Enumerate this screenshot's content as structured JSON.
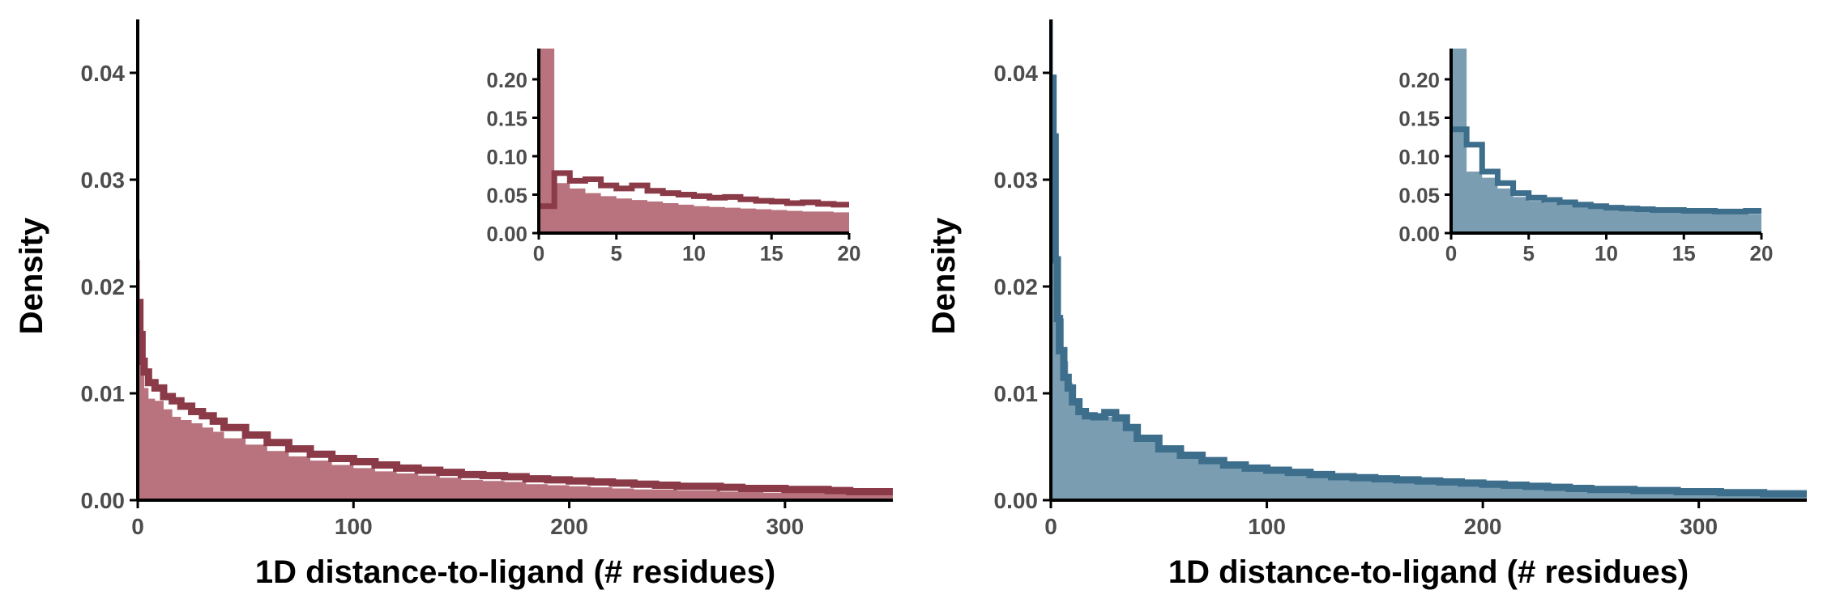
{
  "figure": {
    "panels": [
      "left",
      "right"
    ]
  },
  "colors": {
    "left": {
      "line": "#8b3a48",
      "fill": "#b8737e"
    },
    "right": {
      "line": "#3d6e8c",
      "fill": "#7a9db2"
    }
  },
  "chart_data": [
    {
      "id": "left-main",
      "type": "area",
      "title": "",
      "xlabel": "1D distance-to-ligand (# residues)",
      "ylabel": "Density",
      "xlim": [
        0,
        350
      ],
      "ylim": [
        0,
        0.045
      ],
      "xticks": [
        0,
        100,
        200,
        300
      ],
      "xtick_labels": [
        "0",
        "100",
        "200",
        "300"
      ],
      "yticks": [
        0,
        0.01,
        0.02,
        0.03,
        0.04
      ],
      "ytick_labels": [
        "0.00",
        "0.01",
        "0.02",
        "0.03",
        "0.04"
      ],
      "grid": false,
      "series": [
        {
          "style": "filled-histogram",
          "x": [
            0,
            1,
            2,
            3,
            5,
            8,
            12,
            16,
            20,
            25,
            30,
            35,
            40,
            50,
            60,
            70,
            80,
            90,
            100,
            110,
            120,
            130,
            140,
            150,
            160,
            170,
            180,
            190,
            200,
            210,
            220,
            230,
            240,
            250,
            260,
            270,
            280,
            290,
            300,
            310,
            320,
            330,
            340,
            350
          ],
          "y": [
            0.0225,
            0.018,
            0.013,
            0.0105,
            0.0095,
            0.0093,
            0.0085,
            0.0078,
            0.0075,
            0.0072,
            0.0068,
            0.0064,
            0.0058,
            0.0052,
            0.0046,
            0.0041,
            0.0037,
            0.0033,
            0.003,
            0.0027,
            0.0025,
            0.0023,
            0.0021,
            0.0019,
            0.0018,
            0.0017,
            0.0015,
            0.0014,
            0.0013,
            0.0012,
            0.0011,
            0.001,
            0.001,
            0.0009,
            0.0009,
            0.0008,
            0.0008,
            0.0007,
            0.0007,
            0.0007,
            0.0006,
            0.0006,
            0.0006,
            0.0005
          ]
        },
        {
          "style": "step-line",
          "x": [
            0,
            1,
            2,
            3,
            5,
            8,
            12,
            16,
            20,
            25,
            30,
            35,
            40,
            50,
            60,
            70,
            80,
            90,
            100,
            110,
            120,
            130,
            140,
            150,
            160,
            170,
            180,
            190,
            200,
            210,
            220,
            230,
            240,
            250,
            260,
            270,
            280,
            290,
            300,
            310,
            320,
            330,
            340,
            350
          ],
          "y": [
            0.0185,
            0.0155,
            0.013,
            0.012,
            0.011,
            0.0105,
            0.0097,
            0.0093,
            0.0088,
            0.0083,
            0.0079,
            0.0074,
            0.0068,
            0.0061,
            0.0054,
            0.0048,
            0.0043,
            0.0039,
            0.0036,
            0.0033,
            0.003,
            0.0028,
            0.0026,
            0.0024,
            0.0023,
            0.0022,
            0.002,
            0.0019,
            0.0018,
            0.0017,
            0.0016,
            0.0015,
            0.0014,
            0.0013,
            0.0013,
            0.0012,
            0.0011,
            0.0011,
            0.001,
            0.001,
            0.0009,
            0.0008,
            0.0008,
            0.0007
          ]
        }
      ]
    },
    {
      "id": "left-inset",
      "type": "area",
      "xlim": [
        0,
        20
      ],
      "ylim": [
        0,
        0.24
      ],
      "xticks": [
        0,
        5,
        10,
        15,
        20
      ],
      "xtick_labels": [
        "0",
        "5",
        "10",
        "15",
        "20"
      ],
      "yticks": [
        0,
        0.05,
        0.1,
        0.15,
        0.2
      ],
      "ytick_labels": [
        "0.00",
        "0.05",
        "0.10",
        "0.15",
        "0.20"
      ],
      "series": [
        {
          "style": "filled-histogram",
          "x": [
            0,
            1,
            2,
            3,
            4,
            5,
            6,
            7,
            8,
            9,
            10,
            11,
            12,
            13,
            14,
            15,
            16,
            17,
            18,
            19,
            20
          ],
          "y": [
            0.24,
            0.065,
            0.058,
            0.052,
            0.048,
            0.045,
            0.043,
            0.041,
            0.039,
            0.037,
            0.035,
            0.034,
            0.033,
            0.032,
            0.031,
            0.03,
            0.029,
            0.028,
            0.028,
            0.027,
            0.027
          ]
        },
        {
          "style": "step-line",
          "x": [
            0,
            1,
            2,
            3,
            4,
            5,
            6,
            7,
            8,
            9,
            10,
            11,
            12,
            13,
            14,
            15,
            16,
            17,
            18,
            19,
            20
          ],
          "y": [
            0.035,
            0.078,
            0.068,
            0.07,
            0.062,
            0.058,
            0.062,
            0.055,
            0.052,
            0.05,
            0.048,
            0.046,
            0.047,
            0.044,
            0.042,
            0.041,
            0.039,
            0.04,
            0.038,
            0.037,
            0.037
          ]
        }
      ]
    },
    {
      "id": "right-main",
      "type": "area",
      "title": "",
      "xlabel": "1D distance-to-ligand (# residues)",
      "ylabel": "Density",
      "xlim": [
        0,
        350
      ],
      "ylim": [
        0,
        0.045
      ],
      "xticks": [
        0,
        100,
        200,
        300
      ],
      "xtick_labels": [
        "0",
        "100",
        "200",
        "300"
      ],
      "yticks": [
        0,
        0.01,
        0.02,
        0.03,
        0.04
      ],
      "ytick_labels": [
        "0.00",
        "0.01",
        "0.02",
        "0.03",
        "0.04"
      ],
      "grid": false,
      "series": [
        {
          "style": "filled-histogram",
          "x": [
            0,
            1,
            2,
            3,
            4,
            6,
            8,
            10,
            13,
            16,
            20,
            25,
            30,
            35,
            40,
            50,
            60,
            70,
            80,
            90,
            100,
            110,
            120,
            130,
            140,
            150,
            160,
            170,
            180,
            190,
            200,
            210,
            220,
            230,
            240,
            250,
            260,
            270,
            280,
            290,
            300,
            310,
            320,
            330,
            340,
            350
          ],
          "y": [
            0.045,
            0.038,
            0.03,
            0.022,
            0.017,
            0.013,
            0.011,
            0.0095,
            0.0082,
            0.0077,
            0.0076,
            0.0078,
            0.0074,
            0.0066,
            0.0058,
            0.0048,
            0.0042,
            0.0037,
            0.0033,
            0.003,
            0.0028,
            0.0026,
            0.0024,
            0.0022,
            0.0021,
            0.002,
            0.0019,
            0.0018,
            0.0017,
            0.0016,
            0.0015,
            0.0014,
            0.0013,
            0.0012,
            0.0011,
            0.001,
            0.001,
            0.0009,
            0.0009,
            0.0008,
            0.0008,
            0.0007,
            0.0007,
            0.0006,
            0.0006,
            0.0005
          ]
        },
        {
          "style": "step-line",
          "x": [
            0,
            1,
            2,
            3,
            4,
            6,
            8,
            10,
            13,
            16,
            20,
            25,
            30,
            35,
            40,
            50,
            60,
            70,
            80,
            90,
            100,
            110,
            120,
            130,
            140,
            150,
            160,
            170,
            180,
            190,
            200,
            210,
            220,
            230,
            240,
            250,
            260,
            270,
            280,
            290,
            300,
            310,
            320,
            330,
            340,
            350
          ],
          "y": [
            0.0395,
            0.034,
            0.0225,
            0.017,
            0.014,
            0.0115,
            0.0105,
            0.0092,
            0.0083,
            0.0079,
            0.0078,
            0.0082,
            0.0077,
            0.0068,
            0.0058,
            0.0048,
            0.0042,
            0.0037,
            0.0033,
            0.003,
            0.0028,
            0.0026,
            0.0024,
            0.0022,
            0.0021,
            0.002,
            0.0019,
            0.0018,
            0.0017,
            0.0016,
            0.0015,
            0.0014,
            0.0013,
            0.0012,
            0.0011,
            0.001,
            0.001,
            0.0009,
            0.0009,
            0.0008,
            0.0008,
            0.0007,
            0.0007,
            0.0006,
            0.0006,
            0.0005
          ]
        }
      ]
    },
    {
      "id": "right-inset",
      "type": "area",
      "xlim": [
        0,
        20
      ],
      "ylim": [
        0,
        0.24
      ],
      "xticks": [
        0,
        5,
        10,
        15,
        20
      ],
      "xtick_labels": [
        "0",
        "5",
        "10",
        "15",
        "20"
      ],
      "yticks": [
        0,
        0.05,
        0.1,
        0.15,
        0.2
      ],
      "ytick_labels": [
        "0.00",
        "0.05",
        "0.10",
        "0.15",
        "0.20"
      ],
      "series": [
        {
          "style": "filled-histogram",
          "x": [
            0,
            1,
            2,
            3,
            4,
            5,
            6,
            7,
            8,
            9,
            10,
            11,
            12,
            13,
            14,
            15,
            16,
            17,
            18,
            19,
            20
          ],
          "y": [
            0.24,
            0.08,
            0.072,
            0.058,
            0.047,
            0.042,
            0.039,
            0.036,
            0.034,
            0.033,
            0.032,
            0.031,
            0.03,
            0.029,
            0.028,
            0.027,
            0.027,
            0.026,
            0.026,
            0.025,
            0.025
          ]
        },
        {
          "style": "step-line",
          "x": [
            0,
            1,
            2,
            3,
            4,
            5,
            6,
            7,
            8,
            9,
            10,
            11,
            12,
            13,
            14,
            15,
            16,
            17,
            18,
            19,
            20
          ],
          "y": [
            0.135,
            0.115,
            0.08,
            0.065,
            0.052,
            0.046,
            0.043,
            0.04,
            0.037,
            0.035,
            0.033,
            0.032,
            0.031,
            0.03,
            0.03,
            0.029,
            0.029,
            0.028,
            0.028,
            0.029,
            0.029
          ]
        }
      ]
    }
  ]
}
